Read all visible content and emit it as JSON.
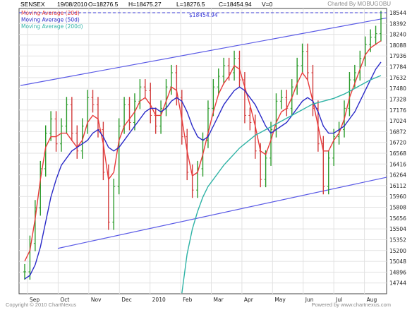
{
  "header": {
    "symbol": "SENSEX",
    "date": "19/08/2010",
    "open": "O=18276.5",
    "high": "H=18475.27",
    "low": "L=18276.5",
    "close": "C=18454.94",
    "volume": "V=0",
    "credit": "Charted By MOBUGOBU"
  },
  "footer": {
    "copyright": "Copyright © 2010 ChartNexus",
    "powered": "Powered by www.chartnexus.com"
  },
  "chart_data": {
    "type": "line",
    "title": "",
    "xlabel": "",
    "ylabel": "",
    "ylim": [
      14592,
      18544
    ],
    "y_ticks": [
      18544,
      18392,
      18240,
      18088,
      17936,
      17784,
      17632,
      17480,
      17328,
      17176,
      17024,
      16872,
      16720,
      16568,
      16416,
      16264,
      16112,
      15960,
      15808,
      15656,
      15504,
      15352,
      15200,
      15048,
      14896,
      14744
    ],
    "x_tick_labels": [
      "Sep",
      "Oct",
      "Nov",
      "Dec",
      "2010",
      "Feb",
      "Mar",
      "Apr",
      "May",
      "Jun",
      "Jul",
      "Aug"
    ],
    "legend_position": "top-left",
    "price_bars": [
      14900,
      15300,
      15800,
      16350,
      16850,
      17050,
      16700,
      16950,
      17250,
      16850,
      16600,
      16950,
      17350,
      17250,
      16900,
      16300,
      15600,
      16100,
      16950,
      17250,
      17000,
      17300,
      17500,
      17450,
      17100,
      16950,
      17200,
      17500,
      17700,
      17350,
      16800,
      16300,
      16050,
      16350,
      16750,
      17200,
      17500,
      17650,
      17800,
      17700,
      17900,
      17600,
      17100,
      17000,
      16600,
      16200,
      16500,
      16900,
      17300,
      17350,
      17200,
      17500,
      17800,
      18000,
      17700,
      17200,
      16700,
      16100,
      16500,
      16800,
      16900,
      17200,
      17600,
      17700,
      17900,
      18100,
      18200,
      18250,
      18460
    ],
    "series": [
      {
        "name": "Moving Average (20d)",
        "color": "#e83a3a",
        "values": [
          15050,
          15200,
          15650,
          16200,
          16650,
          16800,
          16800,
          16850,
          16850,
          16750,
          16650,
          16750,
          17000,
          17100,
          17050,
          16700,
          16200,
          16300,
          16750,
          16950,
          17050,
          17150,
          17300,
          17350,
          17250,
          17100,
          17100,
          17300,
          17500,
          17450,
          17050,
          16600,
          16250,
          16300,
          16550,
          16850,
          17150,
          17400,
          17550,
          17650,
          17800,
          17750,
          17500,
          17250,
          16950,
          16600,
          16550,
          16750,
          17000,
          17150,
          17200,
          17350,
          17550,
          17700,
          17600,
          17300,
          16950,
          16600,
          16600,
          16750,
          16850,
          17050,
          17350,
          17550,
          17750,
          17950,
          18050,
          18100,
          18150
        ]
      },
      {
        "name": "Moving Average (50d)",
        "color": "#2a2ac8",
        "values": [
          14800,
          14850,
          15000,
          15250,
          15600,
          15950,
          16200,
          16400,
          16500,
          16600,
          16650,
          16700,
          16750,
          16850,
          16900,
          16800,
          16650,
          16600,
          16650,
          16750,
          16850,
          16950,
          17050,
          17150,
          17200,
          17200,
          17150,
          17200,
          17300,
          17350,
          17300,
          17150,
          16950,
          16800,
          16750,
          16800,
          16950,
          17100,
          17250,
          17350,
          17450,
          17500,
          17450,
          17350,
          17250,
          17100,
          16950,
          16850,
          16900,
          16950,
          17000,
          17100,
          17200,
          17300,
          17350,
          17300,
          17150,
          16950,
          16850,
          16850,
          16900,
          16950,
          17050,
          17150,
          17300,
          17450,
          17600,
          17750,
          17850
        ]
      },
      {
        "name": "Moving Average (200d)",
        "color": "#2fb3a6",
        "values": [
          null,
          null,
          null,
          null,
          null,
          null,
          null,
          null,
          null,
          null,
          null,
          null,
          null,
          null,
          null,
          null,
          null,
          null,
          null,
          null,
          null,
          null,
          null,
          null,
          null,
          null,
          null,
          null,
          null,
          null,
          14600,
          15150,
          15500,
          15750,
          15950,
          16100,
          16200,
          16300,
          16400,
          16480,
          16560,
          16640,
          16700,
          16760,
          16820,
          16860,
          16900,
          16940,
          16980,
          17020,
          17060,
          17100,
          17140,
          17180,
          17220,
          17260,
          17280,
          17300,
          17320,
          17340,
          17370,
          17400,
          17440,
          17480,
          17520,
          17560,
          17600,
          17630,
          17660
        ]
      }
    ],
    "annotations": {
      "close_line_label": "$18454.94",
      "trend_line_color": "#5a5ae6"
    }
  }
}
